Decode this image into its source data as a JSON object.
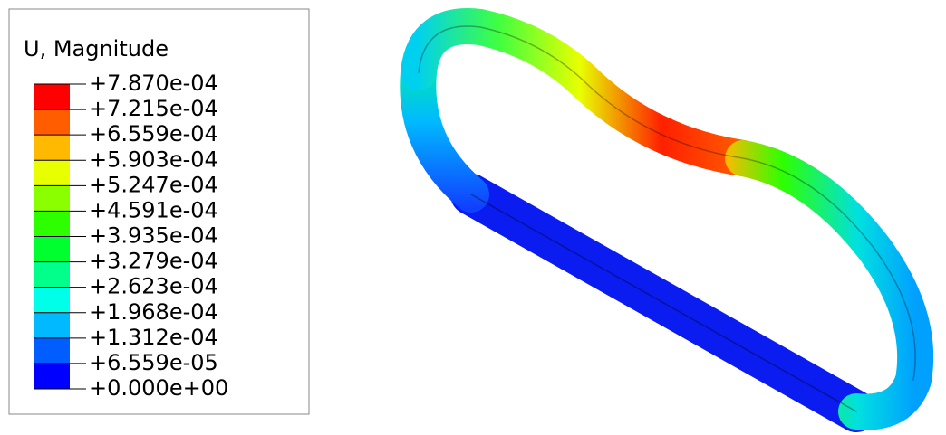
{
  "legend": {
    "title": "U, Magnitude",
    "labels": [
      "+7.870e-04",
      "+7.215e-04",
      "+6.559e-04",
      "+5.903e-04",
      "+5.247e-04",
      "+4.591e-04",
      "+3.935e-04",
      "+3.279e-04",
      "+2.623e-04",
      "+1.968e-04",
      "+1.312e-04",
      "+6.559e-05",
      "+0.000e+00"
    ],
    "colors": [
      "#ff0000",
      "#ff5d00",
      "#ffb900",
      "#e8ff00",
      "#8bff00",
      "#2eff00",
      "#00ff2e",
      "#00ff8b",
      "#00ffe8",
      "#00b9ff",
      "#005dff",
      "#0000ff"
    ]
  }
}
